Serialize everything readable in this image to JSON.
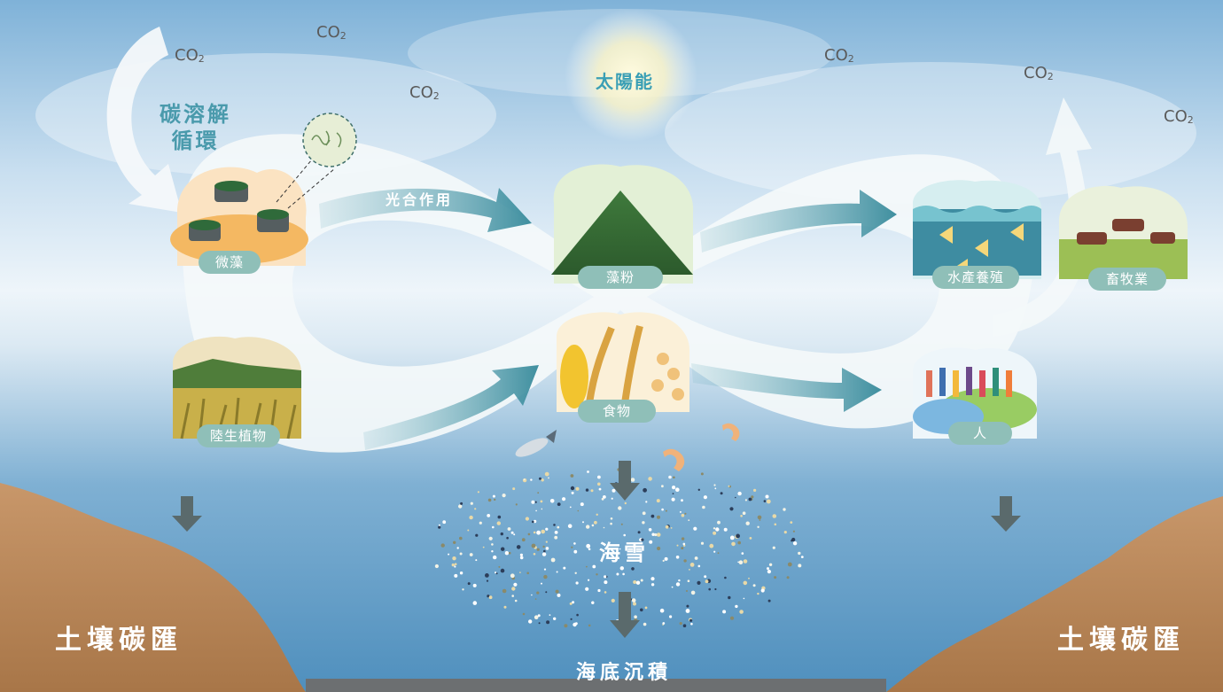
{
  "co2_label": "CO",
  "co2_sub": "2",
  "sun_label": "太陽能",
  "carbon_cycle_label": [
    "碳溶解",
    "循環"
  ],
  "photosynthesis_label": "光合作用",
  "nodes": {
    "microalgae": "微藻",
    "algae_powder": "藻粉",
    "aquaculture": "水產養殖",
    "livestock": "畜牧業",
    "land_plants": "陸生植物",
    "food": "食物",
    "people": "人"
  },
  "marine_snow_label": "海雪",
  "seafloor_label": "海底沉積",
  "soil_sink_left": "土壤碳匯",
  "soil_sink_right": "土壤碳匯",
  "colors": {
    "sky_top": "#7fb4d9",
    "sea": "#5f9cc6",
    "loop": "#f4f8fa",
    "arrow": "#3f8f9f",
    "pill": "#8fbfb8",
    "soil": "#b8895a"
  }
}
